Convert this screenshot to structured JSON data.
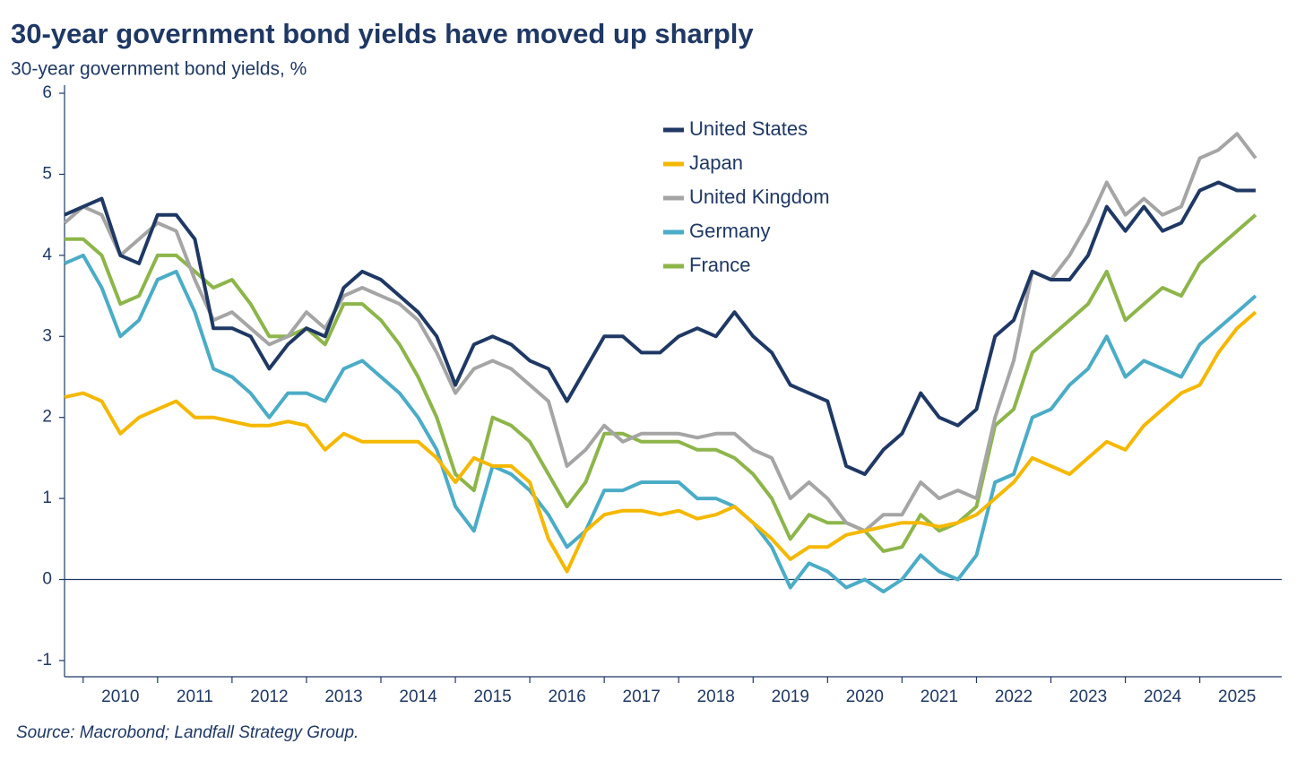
{
  "chart_data": {
    "type": "line",
    "title": "30-year government bond yields have moved up sharply",
    "subtitle": "30-year government bond yields, %",
    "source": "Source: Macrobond; Landfall Strategy Group.",
    "x": [
      2009.75,
      2010.0,
      2010.25,
      2010.5,
      2010.75,
      2011.0,
      2011.25,
      2011.5,
      2011.75,
      2012.0,
      2012.25,
      2012.5,
      2012.75,
      2013.0,
      2013.25,
      2013.5,
      2013.75,
      2014.0,
      2014.25,
      2014.5,
      2014.75,
      2015.0,
      2015.25,
      2015.5,
      2015.75,
      2016.0,
      2016.25,
      2016.5,
      2016.75,
      2017.0,
      2017.25,
      2017.5,
      2017.75,
      2018.0,
      2018.25,
      2018.5,
      2018.75,
      2019.0,
      2019.25,
      2019.5,
      2019.75,
      2020.0,
      2020.25,
      2020.5,
      2020.75,
      2021.0,
      2021.25,
      2021.5,
      2021.75,
      2022.0,
      2022.25,
      2022.5,
      2022.75,
      2023.0,
      2023.25,
      2023.5,
      2023.75,
      2024.0,
      2024.25,
      2024.5,
      2024.75,
      2025.0,
      2025.25,
      2025.5,
      2025.75
    ],
    "series": [
      {
        "name": "United States",
        "color": "#1f3864",
        "values": [
          4.5,
          4.6,
          4.7,
          4.0,
          3.9,
          4.5,
          4.5,
          4.2,
          3.1,
          3.1,
          3.0,
          2.6,
          2.9,
          3.1,
          3.0,
          3.6,
          3.8,
          3.7,
          3.5,
          3.3,
          3.0,
          2.4,
          2.9,
          3.0,
          2.9,
          2.7,
          2.6,
          2.2,
          2.6,
          3.0,
          3.0,
          2.8,
          2.8,
          3.0,
          3.1,
          3.0,
          3.3,
          3.0,
          2.8,
          2.4,
          2.3,
          2.2,
          1.4,
          1.3,
          1.6,
          1.8,
          2.3,
          2.0,
          1.9,
          2.1,
          3.0,
          3.2,
          3.8,
          3.7,
          3.7,
          4.0,
          4.6,
          4.3,
          4.6,
          4.3,
          4.4,
          4.8,
          4.9,
          4.8,
          4.8
        ]
      },
      {
        "name": "Japan",
        "color": "#f5b800",
        "values": [
          2.25,
          2.3,
          2.2,
          1.8,
          2.0,
          2.1,
          2.2,
          2.0,
          2.0,
          1.95,
          1.9,
          1.9,
          1.95,
          1.9,
          1.6,
          1.8,
          1.7,
          1.7,
          1.7,
          1.7,
          1.5,
          1.2,
          1.5,
          1.4,
          1.4,
          1.2,
          0.5,
          0.1,
          0.6,
          0.8,
          0.85,
          0.85,
          0.8,
          0.85,
          0.75,
          0.8,
          0.9,
          0.7,
          0.5,
          0.25,
          0.4,
          0.4,
          0.55,
          0.6,
          0.65,
          0.7,
          0.7,
          0.65,
          0.7,
          0.8,
          1.0,
          1.2,
          1.5,
          1.4,
          1.3,
          1.5,
          1.7,
          1.6,
          1.9,
          2.1,
          2.3,
          2.4,
          2.8,
          3.1,
          3.3
        ]
      },
      {
        "name": "United Kingdom",
        "color": "#a5a5a5",
        "values": [
          4.4,
          4.6,
          4.5,
          4.0,
          4.2,
          4.4,
          4.3,
          3.7,
          3.2,
          3.3,
          3.1,
          2.9,
          3.0,
          3.3,
          3.1,
          3.5,
          3.6,
          3.5,
          3.4,
          3.2,
          2.8,
          2.3,
          2.6,
          2.7,
          2.6,
          2.4,
          2.2,
          1.4,
          1.6,
          1.9,
          1.7,
          1.8,
          1.8,
          1.8,
          1.75,
          1.8,
          1.8,
          1.6,
          1.5,
          1.0,
          1.2,
          1.0,
          0.7,
          0.6,
          0.8,
          0.8,
          1.2,
          1.0,
          1.1,
          1.0,
          2.0,
          2.7,
          3.8,
          3.7,
          4.0,
          4.4,
          4.9,
          4.5,
          4.7,
          4.5,
          4.6,
          5.2,
          5.3,
          5.5,
          5.2
        ]
      },
      {
        "name": "Germany",
        "color": "#4bacc6",
        "values": [
          3.9,
          4.0,
          3.6,
          3.0,
          3.2,
          3.7,
          3.8,
          3.3,
          2.6,
          2.5,
          2.3,
          2.0,
          2.3,
          2.3,
          2.2,
          2.6,
          2.7,
          2.5,
          2.3,
          2.0,
          1.6,
          0.9,
          0.6,
          1.4,
          1.3,
          1.1,
          0.8,
          0.4,
          0.6,
          1.1,
          1.1,
          1.2,
          1.2,
          1.2,
          1.0,
          1.0,
          0.9,
          0.7,
          0.4,
          -0.1,
          0.2,
          0.1,
          -0.1,
          0.0,
          -0.15,
          0.0,
          0.3,
          0.1,
          0.0,
          0.3,
          1.2,
          1.3,
          2.0,
          2.1,
          2.4,
          2.6,
          3.0,
          2.5,
          2.7,
          2.6,
          2.5,
          2.9,
          3.1,
          3.3,
          3.5
        ]
      },
      {
        "name": "France",
        "color": "#8db54a",
        "values": [
          4.2,
          4.2,
          4.0,
          3.4,
          3.5,
          4.0,
          4.0,
          3.8,
          3.6,
          3.7,
          3.4,
          3.0,
          3.0,
          3.1,
          2.9,
          3.4,
          3.4,
          3.2,
          2.9,
          2.5,
          2.0,
          1.3,
          1.1,
          2.0,
          1.9,
          1.7,
          1.3,
          0.9,
          1.2,
          1.8,
          1.8,
          1.7,
          1.7,
          1.7,
          1.6,
          1.6,
          1.5,
          1.3,
          1.0,
          0.5,
          0.8,
          0.7,
          0.7,
          0.6,
          0.35,
          0.4,
          0.8,
          0.6,
          0.7,
          0.9,
          1.9,
          2.1,
          2.8,
          3.0,
          3.2,
          3.4,
          3.8,
          3.2,
          3.4,
          3.6,
          3.5,
          3.9,
          4.1,
          4.3,
          4.5
        ]
      }
    ],
    "xlim": [
      2009.75,
      2026.1
    ],
    "xticks": [
      2010,
      2011,
      2012,
      2013,
      2014,
      2015,
      2016,
      2017,
      2018,
      2019,
      2020,
      2021,
      2022,
      2023,
      2024,
      2025
    ],
    "ylim": [
      -1.2,
      6.1
    ],
    "yticks": [
      -1,
      0,
      1,
      2,
      3,
      4,
      5,
      6
    ]
  }
}
